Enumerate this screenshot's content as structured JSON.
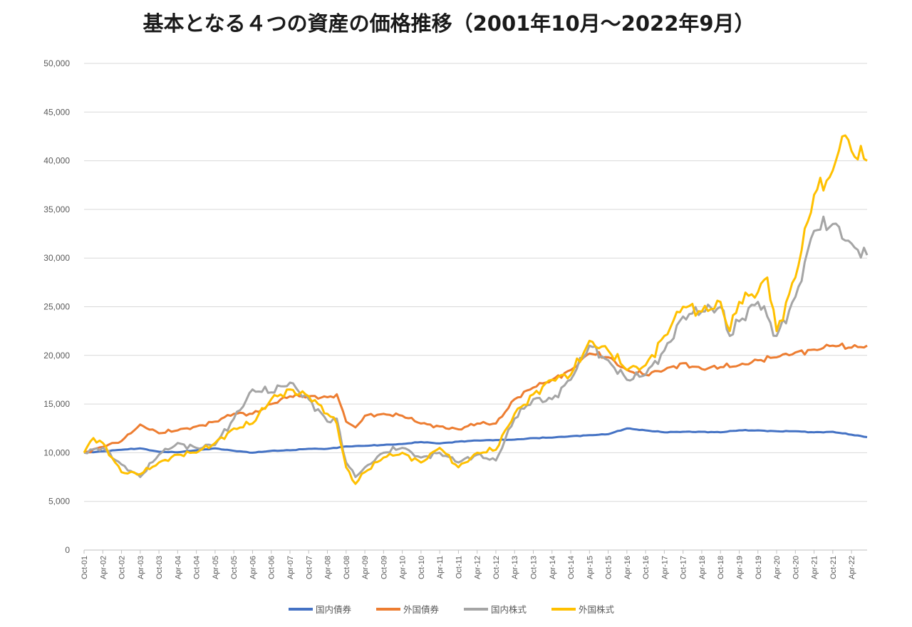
{
  "chart_data": {
    "type": "line",
    "title": "基本となる４つの資産の価格推移（2001年10月〜2022年9月）",
    "xlabel": "",
    "ylabel": "",
    "ylim": [
      0,
      50000
    ],
    "ytick_labels": [
      "0",
      "5,000",
      "10,000",
      "15,000",
      "20,000",
      "25,000",
      "30,000",
      "35,000",
      "40,000",
      "45,000",
      "50,000"
    ],
    "x_tick_labels": [
      "Oct-01",
      "Apr-02",
      "Oct-02",
      "Apr-03",
      "Oct-03",
      "Apr-04",
      "Oct-04",
      "Apr-05",
      "Oct-05",
      "Apr-06",
      "Oct-06",
      "Apr-07",
      "Oct-07",
      "Apr-08",
      "Oct-08",
      "Apr-09",
      "Oct-09",
      "Apr-10",
      "Oct-10",
      "Apr-11",
      "Oct-11",
      "Apr-12",
      "Oct-12",
      "Apr-13",
      "Oct-13",
      "Apr-14",
      "Oct-14",
      "Apr-15",
      "Oct-15",
      "Apr-16",
      "Oct-16",
      "Apr-17",
      "Oct-17",
      "Apr-18",
      "Oct-18",
      "Apr-19",
      "Oct-19",
      "Apr-20",
      "Oct-20",
      "Apr-21",
      "Oct-21",
      "Apr-22"
    ],
    "x_range_months": "Oct-01 to Sep-22",
    "grid": "horizontal",
    "legend_position": "bottom",
    "series": [
      {
        "name": "国内債券",
        "color": "#4472C4",
        "knots": [
          [
            "Oct-01",
            10000
          ],
          [
            "Apr-02",
            10150
          ],
          [
            "Oct-02",
            10300
          ],
          [
            "Apr-03",
            10450
          ],
          [
            "Oct-03",
            10100
          ],
          [
            "Apr-04",
            10050
          ],
          [
            "Oct-04",
            10250
          ],
          [
            "Apr-05",
            10450
          ],
          [
            "Oct-05",
            10200
          ],
          [
            "Apr-06",
            10000
          ],
          [
            "Oct-06",
            10200
          ],
          [
            "Apr-07",
            10250
          ],
          [
            "Oct-07",
            10400
          ],
          [
            "Apr-08",
            10400
          ],
          [
            "Oct-08",
            10650
          ],
          [
            "Apr-09",
            10700
          ],
          [
            "Oct-09",
            10800
          ],
          [
            "Apr-10",
            10900
          ],
          [
            "Oct-10",
            11100
          ],
          [
            "Apr-11",
            10950
          ],
          [
            "Oct-11",
            11150
          ],
          [
            "Apr-12",
            11250
          ],
          [
            "Oct-12",
            11300
          ],
          [
            "Apr-13",
            11350
          ],
          [
            "Oct-13",
            11500
          ],
          [
            "Apr-14",
            11550
          ],
          [
            "Oct-14",
            11700
          ],
          [
            "Apr-15",
            11800
          ],
          [
            "Oct-15",
            11900
          ],
          [
            "Apr-16",
            12500
          ],
          [
            "Oct-16",
            12300
          ],
          [
            "Apr-17",
            12100
          ],
          [
            "Oct-17",
            12150
          ],
          [
            "Apr-18",
            12150
          ],
          [
            "Oct-18",
            12100
          ],
          [
            "Apr-19",
            12300
          ],
          [
            "Oct-19",
            12300
          ],
          [
            "Apr-20",
            12200
          ],
          [
            "Oct-20",
            12200
          ],
          [
            "Apr-21",
            12100
          ],
          [
            "Oct-21",
            12150
          ],
          [
            "Apr-22",
            11850
          ],
          [
            "Sep-22",
            11600
          ]
        ]
      },
      {
        "name": "外国債券",
        "color": "#ED7D31",
        "knots": [
          [
            "Oct-01",
            10000
          ],
          [
            "Apr-02",
            10600
          ],
          [
            "Oct-02",
            11200
          ],
          [
            "Jan-03",
            12000
          ],
          [
            "Apr-03",
            12900
          ],
          [
            "Oct-03",
            12000
          ],
          [
            "Apr-04",
            12300
          ],
          [
            "Oct-04",
            12700
          ],
          [
            "Apr-05",
            13200
          ],
          [
            "Oct-05",
            14000
          ],
          [
            "Apr-06",
            14000
          ],
          [
            "Oct-06",
            15000
          ],
          [
            "Apr-07",
            15800
          ],
          [
            "Oct-07",
            15800
          ],
          [
            "Apr-08",
            15700
          ],
          [
            "Jul-08",
            16000
          ],
          [
            "Oct-08",
            13200
          ],
          [
            "Jan-09",
            12600
          ],
          [
            "Apr-09",
            13800
          ],
          [
            "Oct-09",
            14000
          ],
          [
            "Apr-10",
            13800
          ],
          [
            "Oct-10",
            13000
          ],
          [
            "Apr-11",
            12700
          ],
          [
            "Oct-11",
            12400
          ],
          [
            "Apr-12",
            13000
          ],
          [
            "Oct-12",
            13000
          ],
          [
            "Apr-13",
            15500
          ],
          [
            "Oct-13",
            16700
          ],
          [
            "Apr-14",
            17500
          ],
          [
            "Oct-14",
            18500
          ],
          [
            "Apr-15",
            20200
          ],
          [
            "Oct-15",
            19800
          ],
          [
            "Apr-16",
            18500
          ],
          [
            "Oct-16",
            18000
          ],
          [
            "Apr-17",
            18500
          ],
          [
            "Oct-17",
            19200
          ],
          [
            "Apr-18",
            18600
          ],
          [
            "Oct-18",
            18800
          ],
          [
            "Apr-19",
            19000
          ],
          [
            "Oct-19",
            19500
          ],
          [
            "Apr-20",
            19800
          ],
          [
            "Oct-20",
            20300
          ],
          [
            "Apr-21",
            20600
          ],
          [
            "Oct-21",
            21000
          ],
          [
            "Apr-22",
            20800
          ],
          [
            "Sep-22",
            21000
          ]
        ]
      },
      {
        "name": "国内株式",
        "color": "#A5A5A5",
        "knots": [
          [
            "Oct-01",
            10000
          ],
          [
            "Apr-02",
            10500
          ],
          [
            "Oct-02",
            8800
          ],
          [
            "Apr-03",
            7500
          ],
          [
            "Oct-03",
            9800
          ],
          [
            "Apr-04",
            11000
          ],
          [
            "Oct-04",
            10500
          ],
          [
            "Apr-05",
            10800
          ],
          [
            "Oct-05",
            13500
          ],
          [
            "Apr-06",
            16500
          ],
          [
            "Oct-06",
            16200
          ],
          [
            "Apr-07",
            17200
          ],
          [
            "Oct-07",
            15500
          ],
          [
            "Apr-08",
            13200
          ],
          [
            "Jul-08",
            13500
          ],
          [
            "Oct-08",
            9000
          ],
          [
            "Jan-09",
            7500
          ],
          [
            "Apr-09",
            8500
          ],
          [
            "Oct-09",
            10000
          ],
          [
            "Apr-10",
            10500
          ],
          [
            "Oct-10",
            9500
          ],
          [
            "Apr-11",
            10000
          ],
          [
            "Oct-11",
            9000
          ],
          [
            "Apr-12",
            9800
          ],
          [
            "Oct-12",
            9200
          ],
          [
            "Apr-13",
            13500
          ],
          [
            "Oct-13",
            15500
          ],
          [
            "Apr-14",
            15500
          ],
          [
            "Oct-14",
            17500
          ],
          [
            "Apr-15",
            21000
          ],
          [
            "Oct-15",
            19500
          ],
          [
            "Apr-16",
            17500
          ],
          [
            "Oct-16",
            18000
          ],
          [
            "Apr-17",
            20500
          ],
          [
            "Oct-17",
            24000
          ],
          [
            "Apr-18",
            24500
          ],
          [
            "Oct-18",
            25000
          ],
          [
            "Jan-19",
            22000
          ],
          [
            "Apr-19",
            23500
          ],
          [
            "Oct-19",
            25500
          ],
          [
            "Jan-20",
            24000
          ],
          [
            "Apr-20",
            22000
          ],
          [
            "Oct-20",
            26000
          ],
          [
            "Apr-21",
            32800
          ],
          [
            "Oct-21",
            33500
          ],
          [
            "Apr-22",
            31500
          ],
          [
            "Sep-22",
            30300
          ]
        ]
      },
      {
        "name": "外国株式",
        "color": "#FFC000",
        "knots": [
          [
            "Oct-01",
            10000
          ],
          [
            "Jan-02",
            11500
          ],
          [
            "Apr-02",
            11000
          ],
          [
            "Oct-02",
            8000
          ],
          [
            "Apr-03",
            7800
          ],
          [
            "Oct-03",
            9000
          ],
          [
            "Apr-04",
            9800
          ],
          [
            "Oct-04",
            10000
          ],
          [
            "Apr-05",
            11000
          ],
          [
            "Oct-05",
            12500
          ],
          [
            "Apr-06",
            13000
          ],
          [
            "Oct-06",
            15500
          ],
          [
            "Apr-07",
            16500
          ],
          [
            "Oct-07",
            15800
          ],
          [
            "Apr-08",
            14000
          ],
          [
            "Jul-08",
            13000
          ],
          [
            "Oct-08",
            8500
          ],
          [
            "Jan-09",
            6800
          ],
          [
            "Apr-09",
            8000
          ],
          [
            "Oct-09",
            9500
          ],
          [
            "Apr-10",
            10000
          ],
          [
            "Oct-10",
            9000
          ],
          [
            "Apr-11",
            10500
          ],
          [
            "Oct-11",
            8500
          ],
          [
            "Apr-12",
            10000
          ],
          [
            "Oct-12",
            10300
          ],
          [
            "Apr-13",
            14000
          ],
          [
            "Oct-13",
            16000
          ],
          [
            "Apr-14",
            17500
          ],
          [
            "Oct-14",
            18000
          ],
          [
            "Apr-15",
            21500
          ],
          [
            "Oct-15",
            20500
          ],
          [
            "Apr-16",
            18500
          ],
          [
            "Oct-16",
            19000
          ],
          [
            "Apr-17",
            22000
          ],
          [
            "Oct-17",
            25000
          ],
          [
            "Apr-18",
            24500
          ],
          [
            "Oct-18",
            25500
          ],
          [
            "Jan-19",
            22500
          ],
          [
            "Apr-19",
            25500
          ],
          [
            "Oct-19",
            26500
          ],
          [
            "Jan-20",
            28000
          ],
          [
            "Apr-20",
            22500
          ],
          [
            "Oct-20",
            28000
          ],
          [
            "Apr-21",
            36500
          ],
          [
            "Oct-21",
            39000
          ],
          [
            "Jan-22",
            42500
          ],
          [
            "Apr-22",
            41000
          ],
          [
            "Sep-22",
            40000
          ]
        ]
      }
    ]
  }
}
